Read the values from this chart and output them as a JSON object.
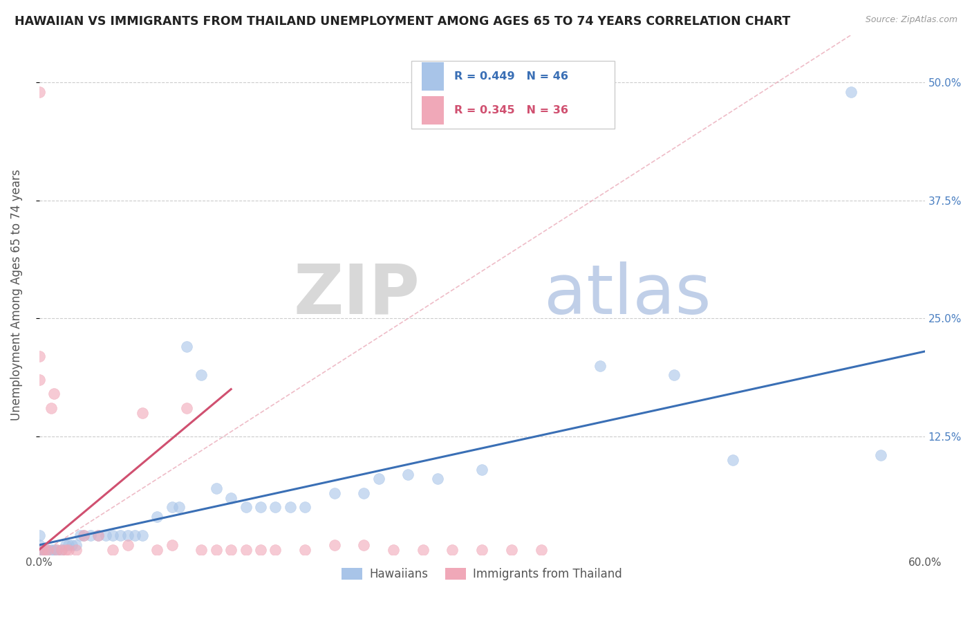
{
  "title": "HAWAIIAN VS IMMIGRANTS FROM THAILAND UNEMPLOYMENT AMONG AGES 65 TO 74 YEARS CORRELATION CHART",
  "source": "Source: ZipAtlas.com",
  "ylabel": "Unemployment Among Ages 65 to 74 years",
  "watermark_zip": "ZIP",
  "watermark_atlas": "atlas",
  "xlim": [
    0.0,
    0.6
  ],
  "ylim": [
    0.0,
    0.55
  ],
  "xtick_positions": [
    0.0,
    0.6
  ],
  "xticklabels": [
    "0.0%",
    "60.0%"
  ],
  "ytick_positions": [
    0.125,
    0.25,
    0.375,
    0.5
  ],
  "yticklabels": [
    "12.5%",
    "25.0%",
    "37.5%",
    "50.0%"
  ],
  "legend_labels": [
    "Hawaiians",
    "Immigrants from Thailand"
  ],
  "hawaiian_color": "#a8c4e8",
  "thailand_color": "#f0a8b8",
  "hawaiian_edge": "#7aa8d8",
  "thailand_edge": "#e07890",
  "hawaiian_R": 0.449,
  "hawaiian_N": 46,
  "thailand_R": 0.345,
  "thailand_N": 36,
  "hawaiian_scatter_x": [
    0.0,
    0.0,
    0.0,
    0.002,
    0.005,
    0.008,
    0.01,
    0.012,
    0.015,
    0.018,
    0.02,
    0.022,
    0.025,
    0.028,
    0.03,
    0.035,
    0.04,
    0.045,
    0.05,
    0.055,
    0.06,
    0.065,
    0.07,
    0.08,
    0.09,
    0.095,
    0.1,
    0.11,
    0.12,
    0.13,
    0.14,
    0.15,
    0.16,
    0.17,
    0.18,
    0.2,
    0.22,
    0.23,
    0.25,
    0.27,
    0.3,
    0.38,
    0.43,
    0.47,
    0.55,
    0.57
  ],
  "hawaiian_scatter_y": [
    0.005,
    0.01,
    0.02,
    0.005,
    0.005,
    0.005,
    0.005,
    0.005,
    0.005,
    0.01,
    0.01,
    0.01,
    0.01,
    0.02,
    0.02,
    0.02,
    0.02,
    0.02,
    0.02,
    0.02,
    0.02,
    0.02,
    0.02,
    0.04,
    0.05,
    0.05,
    0.22,
    0.19,
    0.07,
    0.06,
    0.05,
    0.05,
    0.05,
    0.05,
    0.05,
    0.065,
    0.065,
    0.08,
    0.085,
    0.08,
    0.09,
    0.2,
    0.19,
    0.1,
    0.49,
    0.105
  ],
  "thailand_scatter_x": [
    0.0,
    0.0,
    0.0,
    0.002,
    0.004,
    0.006,
    0.008,
    0.01,
    0.012,
    0.015,
    0.018,
    0.02,
    0.025,
    0.03,
    0.04,
    0.05,
    0.06,
    0.07,
    0.08,
    0.09,
    0.1,
    0.11,
    0.12,
    0.13,
    0.14,
    0.15,
    0.16,
    0.18,
    0.2,
    0.22,
    0.24,
    0.26,
    0.28,
    0.3,
    0.32,
    0.34
  ],
  "thailand_scatter_y": [
    0.49,
    0.21,
    0.185,
    0.005,
    0.005,
    0.005,
    0.155,
    0.17,
    0.005,
    0.005,
    0.005,
    0.005,
    0.005,
    0.02,
    0.02,
    0.005,
    0.01,
    0.15,
    0.005,
    0.01,
    0.155,
    0.005,
    0.005,
    0.005,
    0.005,
    0.005,
    0.005,
    0.005,
    0.01,
    0.01,
    0.005,
    0.005,
    0.005,
    0.005,
    0.005,
    0.005
  ],
  "hawaiian_line_x": [
    0.0,
    0.6
  ],
  "hawaiian_line_y": [
    0.01,
    0.215
  ],
  "thailand_line_x": [
    0.0,
    0.13
  ],
  "thailand_line_y": [
    0.005,
    0.175
  ],
  "diag_line_x": [
    0.0,
    0.55
  ],
  "diag_line_y": [
    0.0,
    0.55
  ],
  "background_color": "#ffffff",
  "grid_color": "#cccccc",
  "title_fontsize": 12.5,
  "axis_label_fontsize": 12,
  "tick_fontsize": 11,
  "right_tick_color": "#4a7fc1"
}
